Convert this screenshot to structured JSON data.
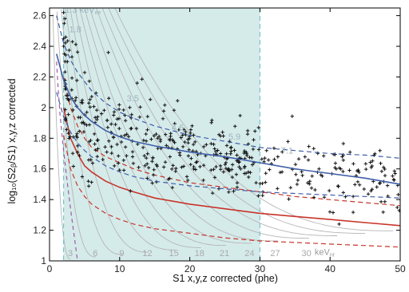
{
  "chart_data": {
    "type": "scatter",
    "title": "",
    "xlabel": "S1 x,y,z corrected (phe)",
    "ylabel": "log₁₀(S2ᵦ/S1) x,y,z corrected",
    "xlim": [
      0,
      50
    ],
    "ylim": [
      1.0,
      2.65
    ],
    "xticks": [
      "0",
      "10",
      "20",
      "30",
      "40",
      "50"
    ],
    "yticks": [
      "1",
      "1.2",
      "1.4",
      "1.6",
      "1.8",
      "2",
      "2.2",
      "2.4",
      "2.6"
    ],
    "grid": false,
    "shaded_region": {
      "x_min": 2,
      "x_max": 30,
      "color": "#d5ebea"
    },
    "colors": {
      "er_band": "#3f5ea8",
      "nr_band": "#c8342a",
      "s2_threshold": "#a05aa8",
      "contour": "#b5b5b5",
      "region_edge": "#78c7c7",
      "points": "#111111"
    },
    "er_band": {
      "x": [
        1,
        2,
        3,
        4,
        5,
        6,
        8,
        10,
        12,
        15,
        20,
        25,
        30,
        35,
        40,
        45,
        50
      ],
      "median": [
        2.35,
        2.18,
        2.07,
        2.0,
        1.95,
        1.91,
        1.85,
        1.81,
        1.78,
        1.75,
        1.71,
        1.68,
        1.64,
        1.6,
        1.57,
        1.54,
        1.5
      ],
      "upper": [
        2.6,
        2.42,
        2.31,
        2.23,
        2.17,
        2.11,
        2.03,
        1.97,
        1.93,
        1.88,
        1.82,
        1.78,
        1.74,
        1.72,
        1.7,
        1.69,
        1.67
      ],
      "lower": [
        2.1,
        1.94,
        1.84,
        1.77,
        1.72,
        1.68,
        1.62,
        1.58,
        1.55,
        1.52,
        1.49,
        1.47,
        1.45,
        1.44,
        1.43,
        1.42,
        1.41
      ]
    },
    "nr_band": {
      "x": [
        2,
        3,
        4,
        5,
        6,
        8,
        10,
        12,
        15,
        20,
        25,
        30,
        35,
        40,
        45,
        50
      ],
      "median": [
        2.0,
        1.8,
        1.7,
        1.62,
        1.58,
        1.52,
        1.48,
        1.45,
        1.41,
        1.37,
        1.34,
        1.31,
        1.29,
        1.27,
        1.25,
        1.23
      ],
      "upper": [
        2.2,
        2.0,
        1.88,
        1.8,
        1.74,
        1.68,
        1.64,
        1.6,
        1.56,
        1.51,
        1.48,
        1.45,
        1.42,
        1.4,
        1.38,
        1.36
      ],
      "lower": [
        1.82,
        1.6,
        1.49,
        1.42,
        1.37,
        1.31,
        1.27,
        1.24,
        1.21,
        1.18,
        1.15,
        1.13,
        1.12,
        1.11,
        1.1,
        1.09
      ]
    },
    "s2_threshold": {
      "x": [
        1.0,
        1.2,
        1.5,
        2.0,
        2.5,
        3.0,
        3.5,
        4.0
      ],
      "y": [
        2.3,
        2.15,
        1.95,
        1.72,
        1.52,
        1.34,
        1.17,
        1.0
      ]
    },
    "nr_contours": [
      {
        "label": "3",
        "x0": 3.0
      },
      {
        "label": "6",
        "x0": 6.6
      },
      {
        "label": "9",
        "x0": 10.4
      },
      {
        "label": "12",
        "x0": 14.1
      },
      {
        "label": "15",
        "x0": 17.9
      },
      {
        "label": "18",
        "x0": 21.6
      },
      {
        "label": "21",
        "x0": 25.2
      },
      {
        "label": "24",
        "x0": 28.8
      },
      {
        "label": "27",
        "x0": 32.5
      },
      {
        "label": "30",
        "x0": 37.0
      },
      {
        "label": "",
        "x0": 41.0
      },
      {
        "label": "",
        "x0": 45.0
      },
      {
        "label": "",
        "x0": 49.0
      }
    ],
    "ee_annotations": [
      {
        "text": "1.3",
        "unit": "keV",
        "sub": "ee",
        "x": 2.2,
        "y": 2.62
      },
      {
        "text": "1.8",
        "x": 2.8,
        "y": 2.49
      },
      {
        "text": "3.5",
        "x": 11.0,
        "y": 2.04
      },
      {
        "text": "4.6",
        "x": 17.4,
        "y": 1.85
      },
      {
        "text": "5.9",
        "x": 25.5,
        "y": 1.79
      },
      {
        "text": "7.1",
        "x": 33.0,
        "y": 1.7
      }
    ],
    "nr_unit": {
      "unit": "keV",
      "sub": "nr",
      "x": 37.8,
      "y": 1.04
    },
    "points": {
      "n_left": 340,
      "n_right": 120,
      "cluster_x": [
        2.0,
        2.0,
        2.0,
        2.1,
        2.1,
        2.2,
        2.2,
        2.3
      ],
      "cluster_y": [
        2.62,
        2.45,
        2.4,
        2.55,
        2.35,
        2.58,
        2.3,
        2.46
      ]
    }
  }
}
